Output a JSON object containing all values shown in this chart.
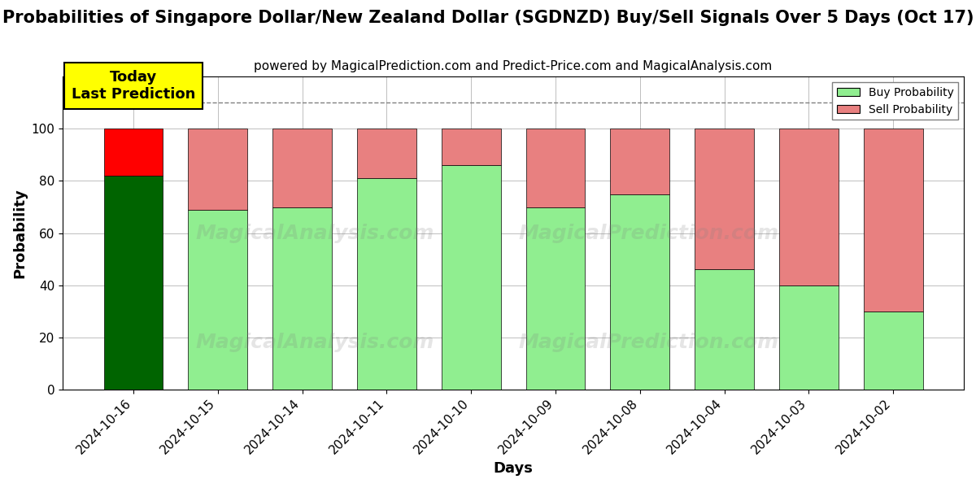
{
  "title": "Probabilities of Singapore Dollar/New Zealand Dollar (SGDNZD) Buy/Sell Signals Over 5 Days (Oct 17)",
  "subtitle": "powered by MagicalPrediction.com and Predict-Price.com and MagicalAnalysis.com",
  "xlabel": "Days",
  "ylabel": "Probability",
  "dates": [
    "2024-10-16",
    "2024-10-15",
    "2024-10-14",
    "2024-10-11",
    "2024-10-10",
    "2024-10-09",
    "2024-10-08",
    "2024-10-04",
    "2024-10-03",
    "2024-10-02"
  ],
  "buy_values": [
    82,
    69,
    70,
    81,
    86,
    70,
    75,
    46,
    40,
    30
  ],
  "sell_values": [
    18,
    31,
    30,
    19,
    14,
    30,
    25,
    54,
    60,
    70
  ],
  "today_bar_buy_color": "#006400",
  "today_bar_sell_color": "#FF0000",
  "other_bar_buy_color": "#90EE90",
  "other_bar_sell_color": "#E88080",
  "today_annotation_bg": "#FFFF00",
  "today_annotation_text": "Today\nLast Prediction",
  "ylim": [
    0,
    120
  ],
  "yticks": [
    0,
    20,
    40,
    60,
    80,
    100
  ],
  "dashed_line_y": 110,
  "legend_buy_label": "Buy Probability",
  "legend_sell_label": "Sell Probability",
  "fig_width": 12,
  "fig_height": 6,
  "title_fontsize": 15,
  "subtitle_fontsize": 11,
  "label_fontsize": 13,
  "tick_fontsize": 11,
  "bar_width": 0.7,
  "bg_color": "#ffffff"
}
